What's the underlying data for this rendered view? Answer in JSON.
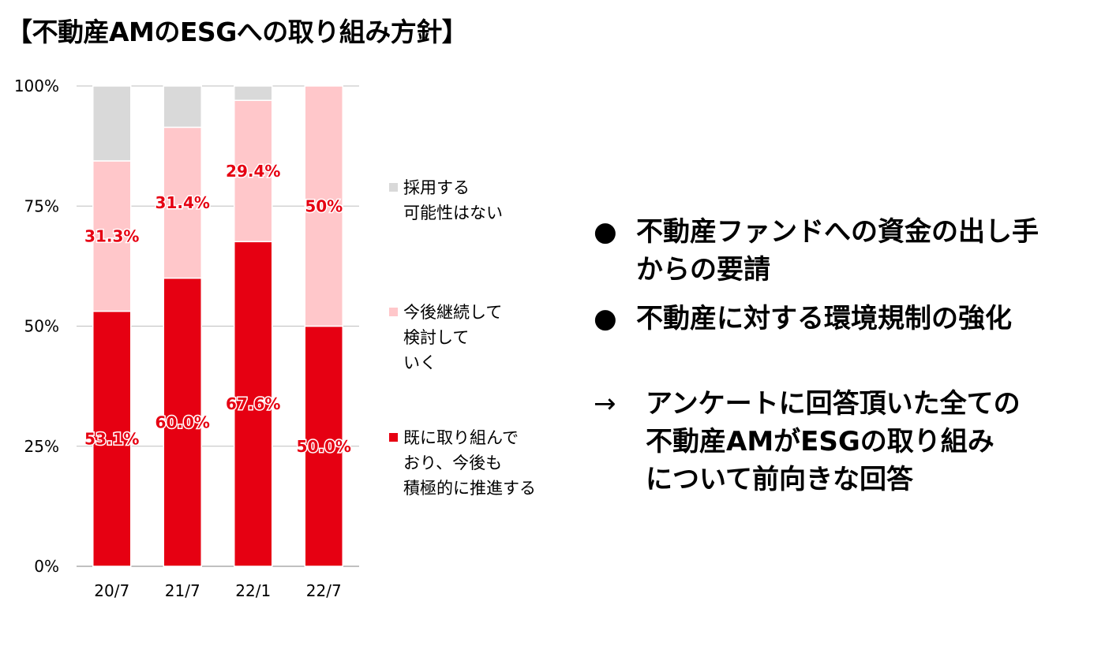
{
  "title": "【不動産AMのESGへの取り組み方針】",
  "chart_data": {
    "type": "bar",
    "stacked": true,
    "categories": [
      "20/7",
      "21/7",
      "22/1",
      "22/7"
    ],
    "ylim": [
      0,
      100
    ],
    "yticks": [
      "0%",
      "25%",
      "50%",
      "75%",
      "100%"
    ],
    "series": [
      {
        "name": "既に取り組んで\nおり、今後も\n積極的に推進する",
        "color": "#e60012",
        "values": [
          53.1,
          60.0,
          67.6,
          50.0
        ],
        "labels": [
          "53.1%",
          "60.0%",
          "67.6%",
          "50.0%"
        ]
      },
      {
        "name": "今後継続して\n検討して\nいく",
        "color": "#ffc7ca",
        "values": [
          31.3,
          31.4,
          29.4,
          50.0
        ],
        "labels": [
          "31.3%",
          "31.4%",
          "29.4%",
          "50%"
        ]
      },
      {
        "name": "採用する\n可能性はない",
        "color": "#d9d9d9",
        "values": [
          15.6,
          8.6,
          3.0,
          0
        ],
        "labels": [
          "",
          "",
          "",
          ""
        ]
      }
    ],
    "label_color": "#e60012",
    "grid": true,
    "legend": "right"
  },
  "bullets": [
    {
      "marker": "●",
      "text": "不動産ファンドへの資金の出し手\nからの要請"
    },
    {
      "marker": "●",
      "text": "不動産に対する環境規制の強化"
    }
  ],
  "conclusion": {
    "arrow": "→",
    "text": "アンケートに回答頂いた全ての\n不動産AMがESGの取り組み\nについて前向きな回答"
  }
}
